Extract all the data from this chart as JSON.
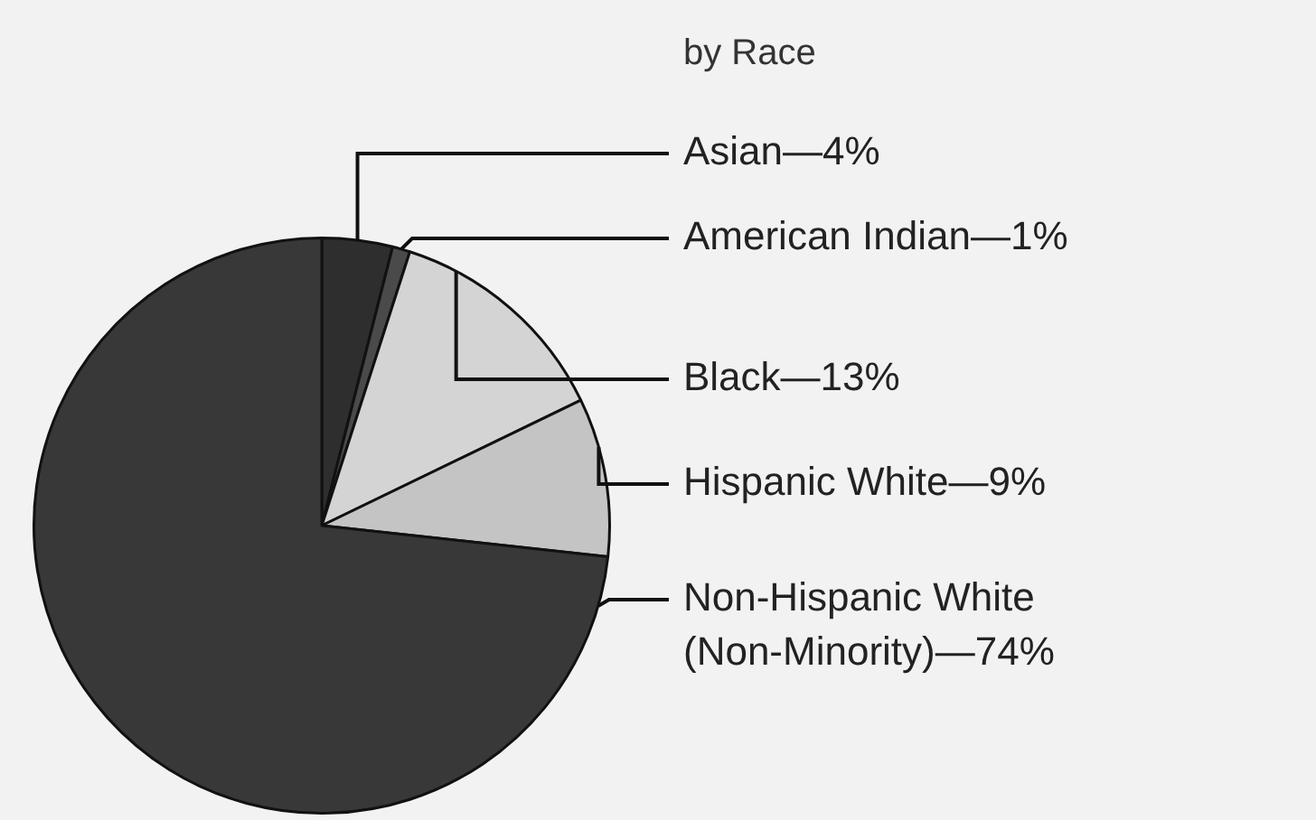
{
  "chart_data": {
    "type": "pie",
    "title": "by Race",
    "categories": [
      "Asian—4%",
      "American Indian—1%",
      "Black—13%",
      "Hispanic White—9%",
      "Non-Hispanic White (Non-Minority)—74%"
    ],
    "values": [
      4,
      1,
      13,
      9,
      74
    ],
    "colors": [
      "#2e2e2e",
      "#4a4a4a",
      "#d4d4d4",
      "#c4c4c4",
      "#383838"
    ]
  }
}
